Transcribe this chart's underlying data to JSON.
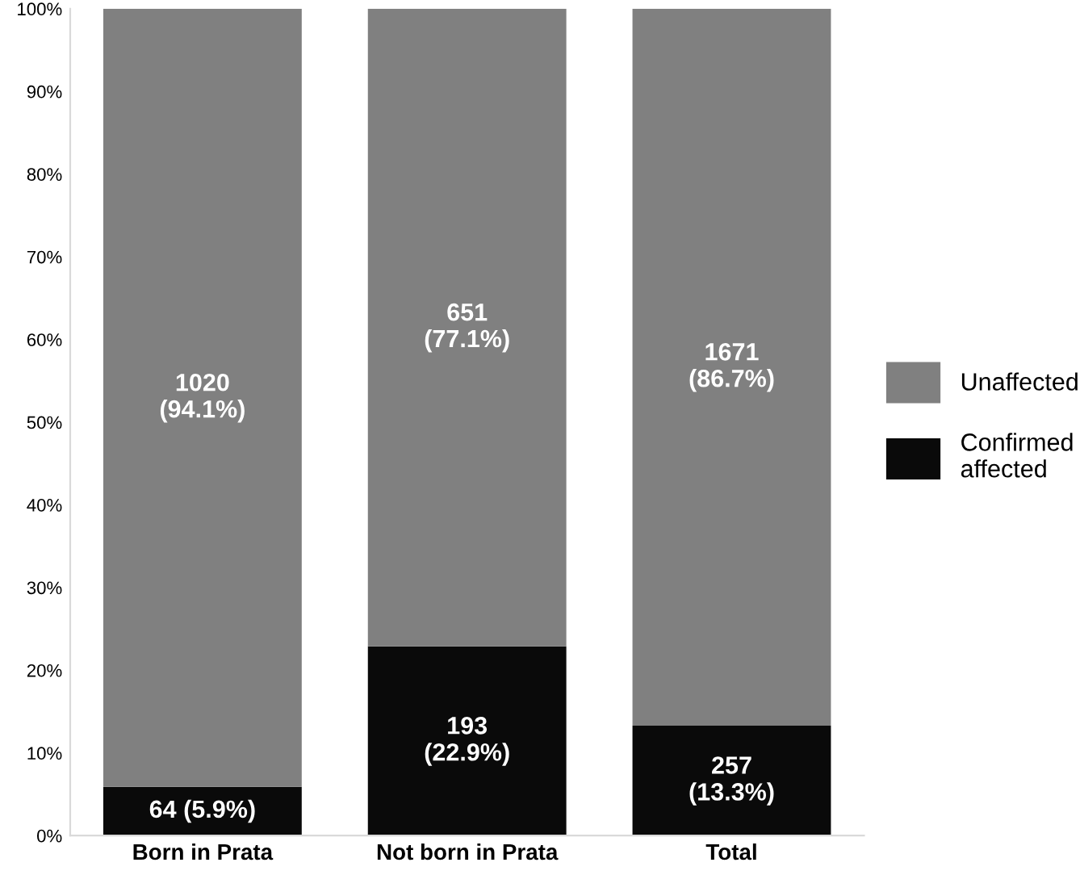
{
  "chart_data": {
    "type": "bar",
    "stacked": true,
    "categories": [
      "Born in Prata",
      "Not born in Prata",
      "Total"
    ],
    "series": [
      {
        "name": "Confirmed\naffected",
        "color": "#0a0a0a",
        "values": [
          5.9,
          22.9,
          13.3
        ],
        "value_labels": [
          "64 (5.9%)",
          "193\n(22.9%)",
          "257\n(13.3%)"
        ]
      },
      {
        "name": "Unaffected",
        "color": "#808080",
        "values": [
          94.1,
          77.1,
          86.7
        ],
        "value_labels": [
          "1020\n(94.1%)",
          "651\n(77.1%)",
          "1671\n(86.7%)"
        ]
      }
    ],
    "ylim": [
      0,
      100
    ],
    "yticks": [
      {
        "value": 0,
        "label": "0%"
      },
      {
        "value": 10,
        "label": "10%"
      },
      {
        "value": 20,
        "label": "20%"
      },
      {
        "value": 30,
        "label": "30%"
      },
      {
        "value": 40,
        "label": "40%"
      },
      {
        "value": 50,
        "label": "50%"
      },
      {
        "value": 60,
        "label": "60%"
      },
      {
        "value": 70,
        "label": "70%"
      },
      {
        "value": 80,
        "label": "80%"
      },
      {
        "value": 90,
        "label": "90%"
      },
      {
        "value": 100,
        "label": "100%"
      }
    ],
    "grid": false,
    "legend": "right"
  }
}
